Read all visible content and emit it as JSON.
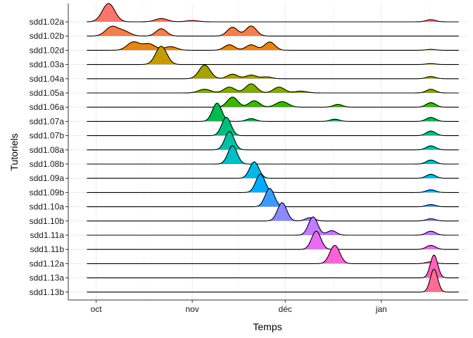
{
  "chart_data": {
    "type": "ridgeline",
    "xlabel": "Temps",
    "ylabel": "Tutoriels",
    "x_ticks": [
      "oct",
      "nov",
      "déc",
      "jan"
    ],
    "x_tick_positions": [
      "2021-10-01",
      "2021-11-01",
      "2021-12-01",
      "2022-01-01"
    ],
    "x_range": [
      "2021-09-22",
      "2022-01-29"
    ],
    "grid": true,
    "legend": "none",
    "series": [
      {
        "name": "sdd1.02a",
        "color": "#F8766D",
        "peaks": [
          [
            "2021-10-05",
            1.0,
            2.0
          ],
          [
            "2021-10-22",
            0.18,
            2.0
          ],
          [
            "2021-11-01",
            0.07,
            2.0
          ],
          [
            "2022-01-17",
            0.12,
            1.5
          ]
        ]
      },
      {
        "name": "sdd1.02b",
        "color": "#F07E4E",
        "peaks": [
          [
            "2021-10-06",
            0.5,
            2.0
          ],
          [
            "2021-10-10",
            0.25,
            2.0
          ],
          [
            "2021-10-22",
            0.4,
            1.7
          ],
          [
            "2021-11-14",
            0.48,
            1.7
          ],
          [
            "2021-11-20",
            0.55,
            1.7
          ]
        ]
      },
      {
        "name": "sdd1.02d",
        "color": "#E2851A",
        "peaks": [
          [
            "2021-10-13",
            0.45,
            2.0
          ],
          [
            "2021-10-18",
            0.35,
            2.0
          ],
          [
            "2021-10-25",
            0.2,
            2.0
          ],
          [
            "2021-11-13",
            0.3,
            1.7
          ],
          [
            "2021-11-20",
            0.3,
            1.7
          ],
          [
            "2021-11-26",
            0.45,
            1.7
          ],
          [
            "2022-01-17",
            0.05,
            1.5
          ]
        ]
      },
      {
        "name": "sdd1.03a",
        "color": "#C39B00",
        "peaks": [
          [
            "2021-10-22",
            1.0,
            1.8
          ],
          [
            "2022-01-17",
            0.05,
            1.5
          ]
        ]
      },
      {
        "name": "sdd1.04a",
        "color": "#A5A200",
        "peaks": [
          [
            "2021-11-05",
            0.75,
            1.8
          ],
          [
            "2021-11-14",
            0.25,
            1.7
          ],
          [
            "2021-11-20",
            0.2,
            1.7
          ],
          [
            "2021-11-25",
            0.1,
            1.7
          ],
          [
            "2022-01-17",
            0.12,
            1.5
          ]
        ]
      },
      {
        "name": "sdd1.05a",
        "color": "#7FAB00",
        "peaks": [
          [
            "2021-11-05",
            0.2,
            2.0
          ],
          [
            "2021-11-13",
            0.32,
            1.8
          ],
          [
            "2021-11-20",
            0.5,
            1.8
          ],
          [
            "2021-11-29",
            0.32,
            1.8
          ],
          [
            "2021-12-06",
            0.1,
            2.0
          ],
          [
            "2022-01-17",
            0.2,
            1.5
          ]
        ]
      },
      {
        "name": "sdd1.06a",
        "color": "#39B600",
        "peaks": [
          [
            "2021-11-14",
            0.55,
            1.7
          ],
          [
            "2021-11-21",
            0.35,
            1.7
          ],
          [
            "2021-11-30",
            0.3,
            2.0
          ],
          [
            "2021-12-18",
            0.15,
            1.5
          ],
          [
            "2022-01-17",
            0.25,
            1.5
          ]
        ]
      },
      {
        "name": "sdd1.07a",
        "color": "#00BB4E",
        "peaks": [
          [
            "2021-11-09",
            1.0,
            1.5
          ],
          [
            "2021-11-20",
            0.15,
            1.5
          ],
          [
            "2021-12-17",
            0.12,
            1.5
          ],
          [
            "2022-01-17",
            0.22,
            1.5
          ]
        ]
      },
      {
        "name": "sdd1.07b",
        "color": "#00BF7D",
        "peaks": [
          [
            "2021-11-12",
            1.0,
            1.5
          ],
          [
            "2022-01-17",
            0.25,
            1.5
          ]
        ]
      },
      {
        "name": "sdd1.08a",
        "color": "#00C1A3",
        "peaks": [
          [
            "2021-11-13",
            1.0,
            1.5
          ],
          [
            "2022-01-17",
            0.22,
            1.5
          ]
        ]
      },
      {
        "name": "sdd1.08b",
        "color": "#00BFC4",
        "peaks": [
          [
            "2021-11-14",
            1.0,
            1.5
          ],
          [
            "2022-01-17",
            0.22,
            1.5
          ]
        ]
      },
      {
        "name": "sdd1.09a",
        "color": "#00B8E5",
        "peaks": [
          [
            "2021-11-21",
            0.9,
            1.5
          ],
          [
            "2022-01-17",
            0.22,
            1.5
          ]
        ]
      },
      {
        "name": "sdd1.09b",
        "color": "#00ABFD",
        "peaks": [
          [
            "2021-11-23",
            1.0,
            1.5
          ],
          [
            "2022-01-17",
            0.15,
            1.5
          ]
        ]
      },
      {
        "name": "sdd1.10a",
        "color": "#3A9BFF",
        "peaks": [
          [
            "2021-11-26",
            1.0,
            1.5
          ],
          [
            "2022-01-17",
            0.12,
            1.5
          ]
        ]
      },
      {
        "name": "sdd1.10b",
        "color": "#8A89FF",
        "peaks": [
          [
            "2021-11-30",
            1.0,
            1.5
          ],
          [
            "2021-12-09",
            0.18,
            1.5
          ],
          [
            "2022-01-17",
            0.12,
            1.5
          ]
        ]
      },
      {
        "name": "sdd1.11a",
        "color": "#C27CFF",
        "peaks": [
          [
            "2021-12-10",
            1.0,
            1.5
          ],
          [
            "2021-12-16",
            0.25,
            1.5
          ],
          [
            "2022-01-17",
            0.22,
            1.5
          ]
        ]
      },
      {
        "name": "sdd1.11b",
        "color": "#E76BF3",
        "peaks": [
          [
            "2021-12-11",
            1.0,
            1.5
          ],
          [
            "2022-01-17",
            0.22,
            1.5
          ]
        ]
      },
      {
        "name": "sdd1.12a",
        "color": "#FA62DB",
        "peaks": [
          [
            "2021-12-17",
            1.0,
            1.6
          ],
          [
            "2022-01-17",
            0.1,
            1.5
          ]
        ]
      },
      {
        "name": "sdd1.13a",
        "color": "#FF62BC",
        "peaks": [
          [
            "2022-01-18",
            1.25,
            1.2
          ]
        ]
      },
      {
        "name": "sdd1.13b",
        "color": "#FF6C91",
        "peaks": [
          [
            "2022-01-18",
            1.25,
            1.2
          ]
        ]
      }
    ]
  }
}
